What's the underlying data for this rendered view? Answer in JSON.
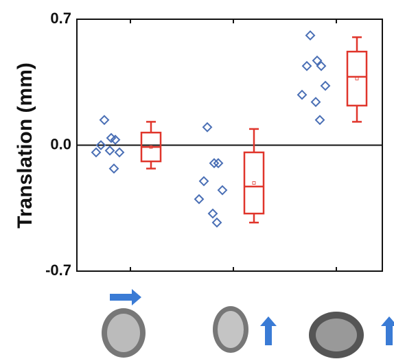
{
  "chart_data": {
    "type": "box",
    "ylabel": "Translation (mm)",
    "categories": [
      null,
      null,
      null
    ],
    "groups": [
      {
        "points": [
          0.14,
          0.04,
          0.03,
          0.0,
          -0.04,
          -0.04,
          -0.03,
          -0.13
        ],
        "box": {
          "whisker_low": -0.13,
          "q1": -0.09,
          "median": -0.01,
          "q3": 0.07,
          "whisker_high": 0.13,
          "mean": -0.01
        }
      },
      {
        "points": [
          0.1,
          -0.1,
          -0.1,
          -0.2,
          -0.25,
          -0.3,
          -0.38,
          -0.43
        ],
        "box": {
          "whisker_low": -0.43,
          "q1": -0.38,
          "median": -0.23,
          "q3": -0.04,
          "whisker_high": 0.09,
          "mean": -0.21
        }
      },
      {
        "points": [
          0.61,
          0.47,
          0.44,
          0.44,
          0.33,
          0.28,
          0.24,
          0.14
        ],
        "box": {
          "whisker_low": 0.13,
          "q1": 0.22,
          "median": 0.38,
          "q3": 0.52,
          "whisker_high": 0.6,
          "mean": 0.37
        }
      }
    ],
    "point_color": "#4a6fb5",
    "box_color": "#e0352b",
    "ylim": [
      -0.7,
      0.7
    ],
    "yticks": [
      -0.7,
      {
        "value": 0,
        "label": "0.0"
      },
      0.7
    ],
    "zero_line": true
  }
}
